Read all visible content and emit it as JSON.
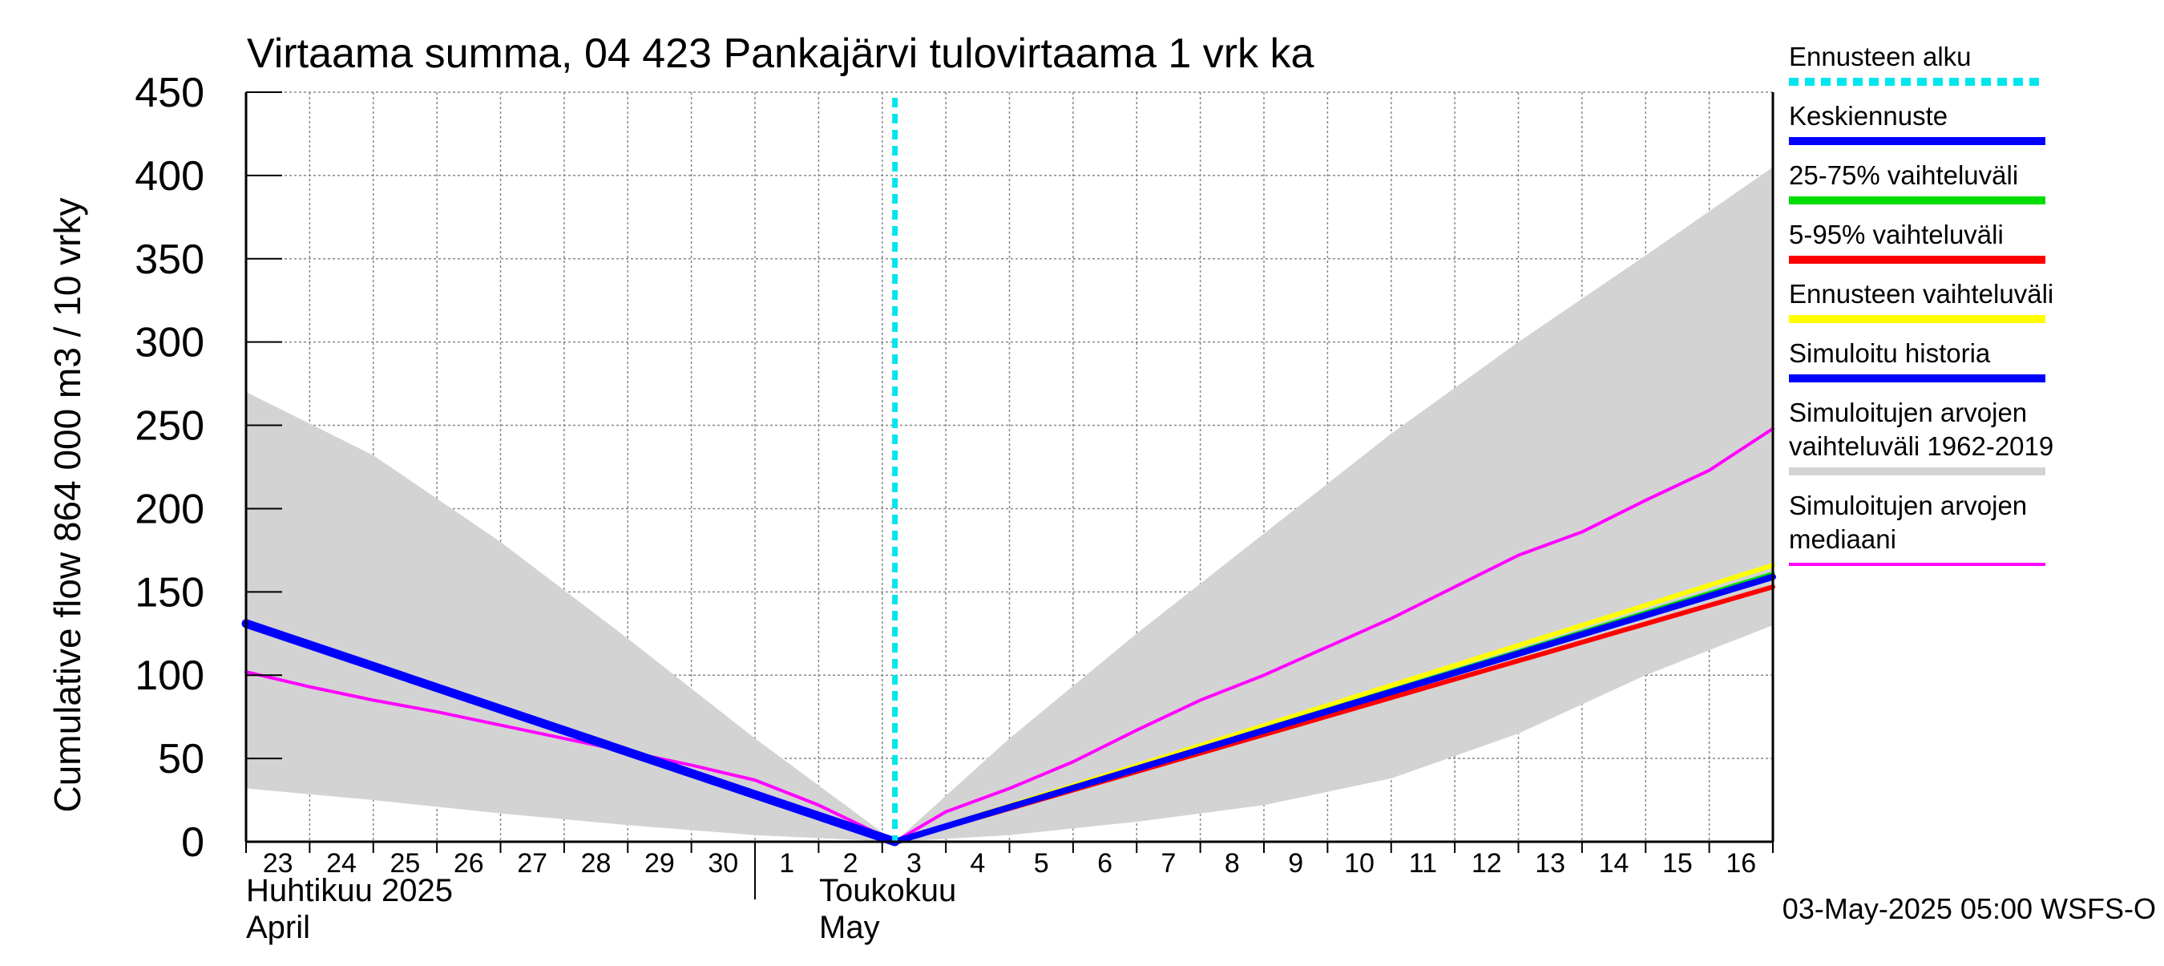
{
  "chart_data": {
    "type": "line",
    "title": "Virtaama summa, 04 423 Pankajärvi tulovirtaama 1 vrk ka",
    "ylabel": "Cumulative flow    864 000 m3 / 10 vrky",
    "ylim": [
      0,
      450
    ],
    "yticks": [
      0,
      50,
      100,
      150,
      200,
      250,
      300,
      350,
      400,
      450
    ],
    "x_day_range": [
      22.5,
      46.5
    ],
    "forecast_start_day": 32.7,
    "x_ticks": [
      {
        "day": 23,
        "label": "23"
      },
      {
        "day": 24,
        "label": "24"
      },
      {
        "day": 25,
        "label": "25"
      },
      {
        "day": 26,
        "label": "26"
      },
      {
        "day": 27,
        "label": "27"
      },
      {
        "day": 28,
        "label": "28"
      },
      {
        "day": 29,
        "label": "29"
      },
      {
        "day": 30,
        "label": "30"
      },
      {
        "day": 31,
        "label": "1"
      },
      {
        "day": 32,
        "label": "2"
      },
      {
        "day": 33,
        "label": "3"
      },
      {
        "day": 34,
        "label": "4"
      },
      {
        "day": 35,
        "label": "5"
      },
      {
        "day": 36,
        "label": "6"
      },
      {
        "day": 37,
        "label": "7"
      },
      {
        "day": 38,
        "label": "8"
      },
      {
        "day": 39,
        "label": "9"
      },
      {
        "day": 40,
        "label": "10"
      },
      {
        "day": 41,
        "label": "11"
      },
      {
        "day": 42,
        "label": "12"
      },
      {
        "day": 43,
        "label": "13"
      },
      {
        "day": 44,
        "label": "14"
      },
      {
        "day": 45,
        "label": "15"
      },
      {
        "day": 46,
        "label": "16"
      }
    ],
    "month_labels": [
      {
        "day": 22.5,
        "fi": "Huhtikuu  2025",
        "en": "April"
      },
      {
        "day": 31,
        "fi": "Toukokuu",
        "en": "May"
      }
    ],
    "series": [
      {
        "name": "Simuloitujen arvojen vaihteluväli 1962-2019",
        "kind": "band",
        "color": "#d3d3d3",
        "x": [
          22.5,
          24.5,
          26.5,
          28.5,
          30.5,
          32.7,
          34.5,
          36.5,
          38.5,
          40.5,
          42.5,
          44.5,
          46.5
        ],
        "upper": [
          270,
          232,
          180,
          122,
          62,
          0,
          62,
          125,
          185,
          245,
          300,
          352,
          405
        ],
        "lower": [
          32,
          25,
          17,
          10,
          4,
          0,
          4,
          12,
          22,
          38,
          65,
          100,
          130
        ]
      },
      {
        "name": "Simuloitujen arvojen mediaani",
        "kind": "line",
        "color": "#ff00ff",
        "width": 4,
        "x": [
          22.5,
          23.5,
          24.5,
          25.5,
          26.5,
          27.5,
          28.5,
          29.5,
          30.5,
          31.5,
          32.7,
          33.5,
          34.5,
          35.5,
          36.5,
          37.5,
          38.5,
          39.5,
          40.5,
          41.5,
          42.5,
          43.5,
          44.5,
          45.5,
          46.5
        ],
        "y": [
          102,
          93,
          85,
          78,
          70,
          62,
          54,
          46,
          37,
          22,
          0,
          18,
          32,
          48,
          67,
          85,
          100,
          117,
          134,
          153,
          172,
          186,
          205,
          223,
          248
        ]
      },
      {
        "name": "Ennusteen vaihteluväli",
        "kind": "line",
        "color": "#ffff00",
        "width": 6,
        "x": [
          32.7,
          46.5
        ],
        "y": [
          0,
          166
        ]
      },
      {
        "name": "5-95% vaihteluväli",
        "kind": "line",
        "color": "#ff0000",
        "width": 6,
        "x": [
          32.7,
          46.5
        ],
        "y": [
          0,
          153
        ]
      },
      {
        "name": "25-75% vaihteluväli",
        "kind": "line",
        "color": "#00dd00",
        "width": 5,
        "x": [
          32.7,
          46.5
        ],
        "y": [
          0,
          161
        ]
      },
      {
        "name": "Simuloitu historia",
        "kind": "line",
        "color": "#0000ff",
        "width": 11,
        "x": [
          22.5,
          32.7
        ],
        "y": [
          131,
          0
        ]
      },
      {
        "name": "Keskiennuste",
        "kind": "line",
        "color": "#0000ff",
        "width": 8,
        "x": [
          32.7,
          46.5
        ],
        "y": [
          0,
          159
        ]
      }
    ],
    "legend": [
      {
        "label": "Ennusteen alku",
        "color": "#00e5ee",
        "style": "dashed"
      },
      {
        "label": "Keskiennuste",
        "color": "#0000ff",
        "style": "solid"
      },
      {
        "label": "25-75% vaihteluväli",
        "color": "#00dd00",
        "style": "solid"
      },
      {
        "label": "5-95% vaihteluväli",
        "color": "#ff0000",
        "style": "solid"
      },
      {
        "label": "Ennusteen vaihteluväli",
        "color": "#ffff00",
        "style": "solid"
      },
      {
        "label": "Simuloitu historia",
        "color": "#0000ff",
        "style": "solid"
      },
      {
        "label": "Simuloitujen arvojen\nvaihteluväli 1962-2019",
        "color": "#d3d3d3",
        "style": "solid"
      },
      {
        "label": "Simuloitujen arvojen\nmediaani",
        "color": "#ff00ff",
        "style": "thin"
      }
    ],
    "footer": "03-May-2025 05:00 WSFS-O"
  }
}
